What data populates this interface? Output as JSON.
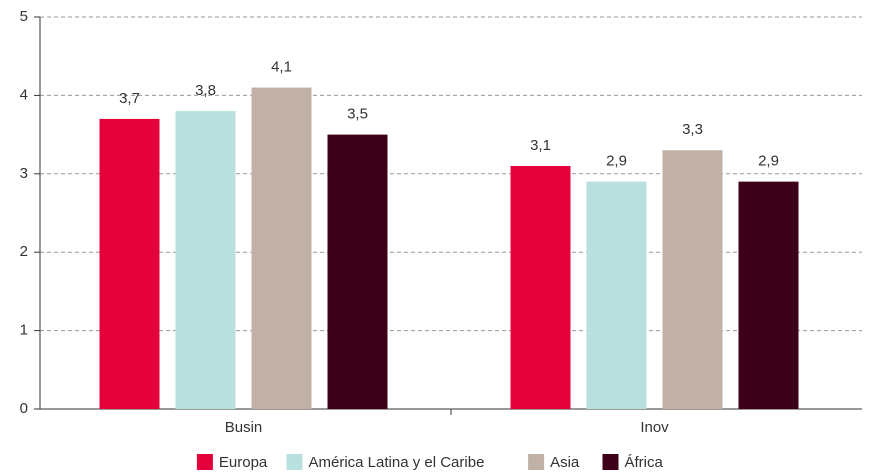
{
  "chart_data": {
    "type": "bar",
    "categories": [
      "Busin",
      "Inov"
    ],
    "series": [
      {
        "name": "Europa",
        "color": "#e4003a",
        "values": [
          3.7,
          3.1
        ],
        "value_labels": [
          "3,7",
          "3,1"
        ]
      },
      {
        "name": "América Latina y el Caribe",
        "color": "#b7e0df",
        "values": [
          3.8,
          2.9
        ],
        "value_labels": [
          "3,8",
          "2,9"
        ]
      },
      {
        "name": "Asia",
        "color": "#c0b0a6",
        "values": [
          4.1,
          3.3
        ],
        "value_labels": [
          "4,1",
          "3,3"
        ]
      },
      {
        "name": "África",
        "color": "#3d0019",
        "values": [
          3.5,
          2.9
        ],
        "value_labels": [
          "3,5",
          "2,9"
        ]
      }
    ],
    "ylim": [
      0,
      5
    ],
    "yticks": [
      0,
      1,
      2,
      3,
      4,
      5
    ],
    "grid": true,
    "legend": "bottom"
  }
}
